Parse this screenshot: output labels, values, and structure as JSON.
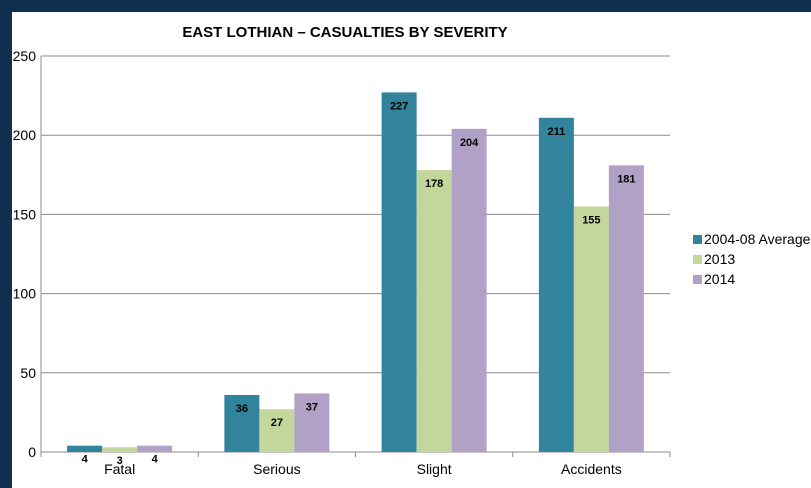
{
  "chart_data": {
    "type": "bar",
    "title": "EAST LOTHIAN – CASUALTIES BY SEVERITY",
    "xlabel": "",
    "ylabel": "",
    "categories": [
      "Fatal",
      "Serious",
      "Slight",
      "Accidents"
    ],
    "series": [
      {
        "name": "2004-08 Average",
        "color": "#31849b",
        "values": [
          4,
          36,
          227,
          211
        ]
      },
      {
        "name": "2013",
        "color": "#c3d69b",
        "values": [
          3,
          27,
          178,
          155
        ]
      },
      {
        "name": "2014",
        "color": "#b2a1c7",
        "values": [
          4,
          37,
          204,
          181
        ]
      }
    ],
    "ylim": [
      0,
      250
    ],
    "yticks": [
      0,
      50,
      100,
      150,
      200,
      250
    ],
    "grid": true,
    "legend": "right"
  },
  "colors": {
    "frame": "#0f2f4f",
    "panel": "#ffffff",
    "gridline": "#8c8c8c"
  }
}
